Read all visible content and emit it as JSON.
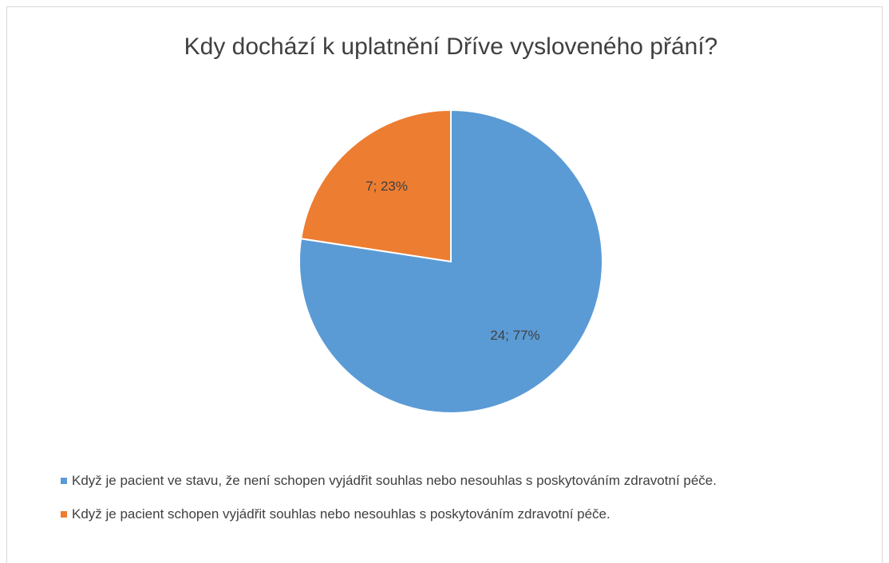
{
  "chart_data": {
    "type": "pie",
    "title": "Kdy dochází k uplatnění Dříve vysloveného přání?",
    "categories": [
      "Když je pacient ve stavu, že není schopen vyjádřit souhlas nebo nesouhlas s poskytováním zdravotní péče.",
      "Když je pacient schopen vyjádřit souhlas nebo nesouhlas s poskytováním zdravotní péče."
    ],
    "values": [
      24,
      7
    ],
    "value_labels": [
      "24; 77%",
      "7; 23%"
    ],
    "colors": [
      "#5b9bd5",
      "#ed7d31"
    ],
    "legend": "bottom"
  }
}
